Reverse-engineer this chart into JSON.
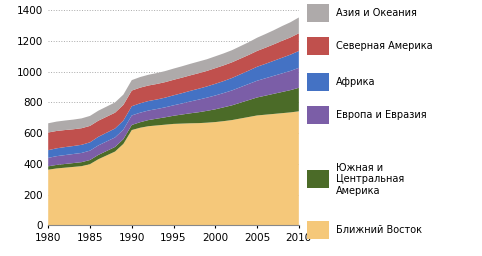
{
  "years": [
    1980,
    1981,
    1982,
    1983,
    1984,
    1985,
    1986,
    1987,
    1988,
    1989,
    1990,
    1991,
    1992,
    1993,
    1994,
    1995,
    1996,
    1997,
    1998,
    1999,
    2000,
    2001,
    2002,
    2003,
    2004,
    2005,
    2006,
    2007,
    2008,
    2009,
    2010
  ],
  "series": {
    "Ближний Восток": [
      362,
      370,
      375,
      380,
      385,
      398,
      430,
      455,
      480,
      530,
      620,
      635,
      645,
      650,
      655,
      660,
      662,
      664,
      665,
      668,
      672,
      678,
      685,
      695,
      705,
      715,
      720,
      725,
      730,
      735,
      742
    ],
    "Южная и Центральная Америка": [
      22,
      23,
      24,
      25,
      26,
      27,
      28,
      29,
      30,
      31,
      33,
      36,
      40,
      44,
      48,
      53,
      59,
      65,
      71,
      77,
      83,
      90,
      96,
      103,
      110,
      117,
      124,
      131,
      138,
      145,
      153
    ],
    "Европа и Евразия": [
      55,
      57,
      58,
      59,
      60,
      61,
      62,
      62,
      62,
      62,
      62,
      62,
      62,
      63,
      65,
      68,
      72,
      77,
      82,
      86,
      90,
      93,
      97,
      101,
      105,
      109,
      113,
      117,
      121,
      125,
      130
    ],
    "Африка": [
      50,
      51,
      52,
      52,
      53,
      54,
      56,
      57,
      58,
      59,
      60,
      61,
      62,
      62,
      63,
      65,
      67,
      69,
      71,
      73,
      76,
      78,
      81,
      84,
      87,
      91,
      94,
      98,
      102,
      106,
      110
    ],
    "Северная Америка": [
      115,
      113,
      111,
      109,
      108,
      107,
      105,
      104,
      103,
      102,
      102,
      102,
      101,
      101,
      101,
      101,
      101,
      101,
      101,
      101,
      102,
      102,
      102,
      102,
      102,
      103,
      105,
      107,
      110,
      112,
      115
    ],
    "Азия и Океания": [
      60,
      61,
      62,
      63,
      64,
      65,
      65,
      66,
      67,
      67,
      68,
      69,
      70,
      71,
      72,
      73,
      74,
      75,
      76,
      76,
      77,
      78,
      79,
      81,
      83,
      86,
      89,
      92,
      96,
      99,
      103
    ]
  },
  "colors": {
    "Ближний Восток": "#F5C87A",
    "Южная и Центральная Америка": "#4B6B28",
    "Европа и Евразия": "#7B5EA7",
    "Африка": "#4472C4",
    "Северная Америка": "#C0504D",
    "Азия и Океания": "#AEAAAA"
  },
  "legend_order": [
    "Азия и Океания",
    "Северная Америка",
    "Африка",
    "Европа и Евразия",
    "Южная и Центральная Америка",
    "Ближний Восток"
  ],
  "legend_labels": {
    "Азия и Океания": "Азия и Океания",
    "Северная Америка": "Северная Америка",
    "Африка": "Африка",
    "Европа и Евразия": "Европа и Евразия",
    "Южная и Центральная Америка": "Южная и\nЦентральная\nАмерика",
    "Ближний Восток": "Ближний Восток"
  },
  "xlim": [
    1980,
    2010
  ],
  "ylim": [
    0,
    1400
  ],
  "yticks": [
    0,
    200,
    400,
    600,
    800,
    1000,
    1200,
    1400
  ],
  "xticks": [
    1980,
    1985,
    1990,
    1995,
    2000,
    2005,
    2010
  ],
  "background_color": "#FFFFFF",
  "grid_color": "#AAAAAA"
}
